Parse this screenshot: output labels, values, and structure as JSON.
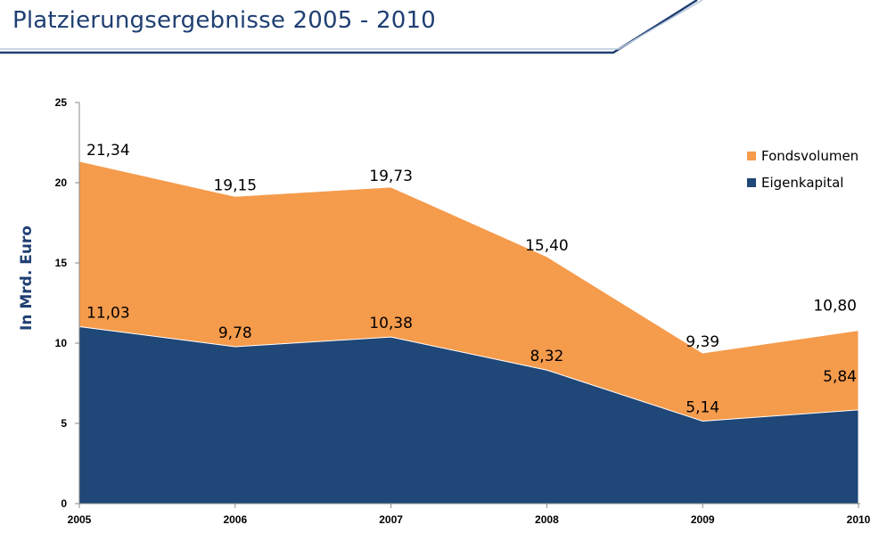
{
  "header": {
    "title": "Platzierungsergebnisse 2005 - 2010"
  },
  "colors": {
    "navy": "#1f3f72",
    "orange": "#f59b4c",
    "header_line": "#1f3f72",
    "header_line_light": "#b9c8dc"
  },
  "chart_data": {
    "type": "area",
    "stacked": false,
    "categories": [
      "2005",
      "2006",
      "2007",
      "2008",
      "2009",
      "2010"
    ],
    "ylabel": "In Mrd. Euro",
    "xlabel": "",
    "ylim": [
      0,
      25
    ],
    "yticks": [
      "0",
      "5",
      "10",
      "15",
      "20",
      "25"
    ],
    "legend_position": "right",
    "series": [
      {
        "name": "Fondsvolumen",
        "color": "#f59b4c",
        "values": [
          21.34,
          19.15,
          19.73,
          15.4,
          9.39,
          10.8
        ],
        "labels": [
          "21,34",
          "19,15",
          "19,73",
          "15,40",
          "9,39",
          "10,80"
        ]
      },
      {
        "name": "Eigenkapital",
        "color": "#1f4777",
        "values": [
          11.03,
          9.78,
          10.38,
          8.32,
          5.14,
          5.84
        ],
        "labels": [
          "11,03",
          "9,78",
          "10,38",
          "8,32",
          "5,14",
          "5,84"
        ]
      }
    ]
  }
}
